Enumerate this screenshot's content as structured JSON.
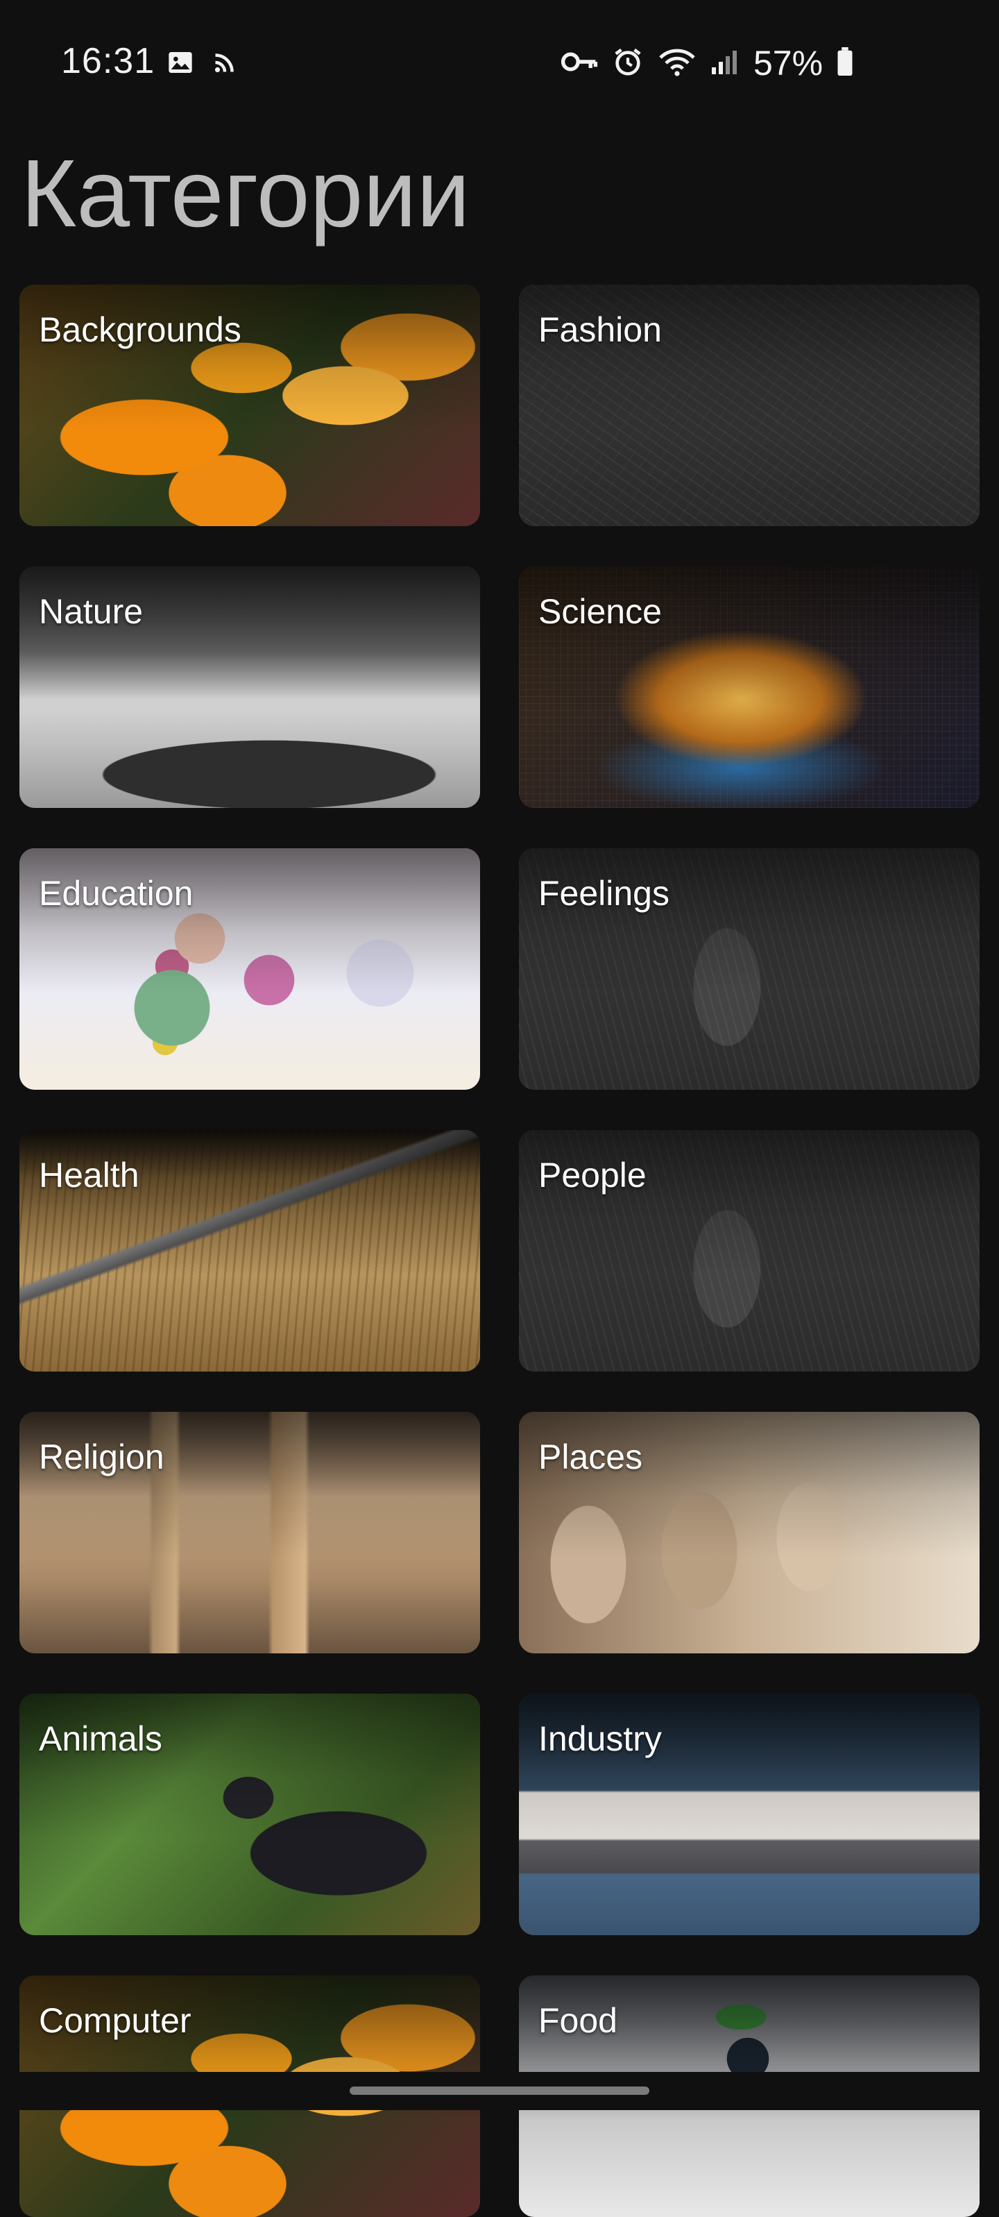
{
  "status_bar": {
    "time": "16:31",
    "left_icons": [
      "gallery-icon",
      "cast-icon"
    ],
    "right_icons": [
      "vpn-key-icon",
      "alarm-icon",
      "wifi-icon",
      "signal-icon",
      "battery-icon"
    ],
    "battery_percent": "57%"
  },
  "page": {
    "title": "Категории"
  },
  "categories": [
    {
      "label": "Backgrounds",
      "image": "lily-flowers"
    },
    {
      "label": "Fashion",
      "image": "line-sketch"
    },
    {
      "label": "Nature",
      "image": "lighthouse-island"
    },
    {
      "label": "Science",
      "image": "glowing-globe"
    },
    {
      "label": "Education",
      "image": "colorful-head-silhouette"
    },
    {
      "label": "Feelings",
      "image": "line-sketch-figure"
    },
    {
      "label": "Health",
      "image": "old-tool-on-wood"
    },
    {
      "label": "People",
      "image": "line-sketch-figure"
    },
    {
      "label": "Religion",
      "image": "mosque-interior"
    },
    {
      "label": "Places",
      "image": "stone-columns"
    },
    {
      "label": "Animals",
      "image": "crow"
    },
    {
      "label": "Industry",
      "image": "cargo-ship"
    },
    {
      "label": "Computer",
      "image": "lily-flowers"
    },
    {
      "label": "Food",
      "image": "blueberry-dessert"
    }
  ],
  "colors": {
    "background": "#101010",
    "title": "#bdbdbd",
    "label": "#ffffff"
  }
}
